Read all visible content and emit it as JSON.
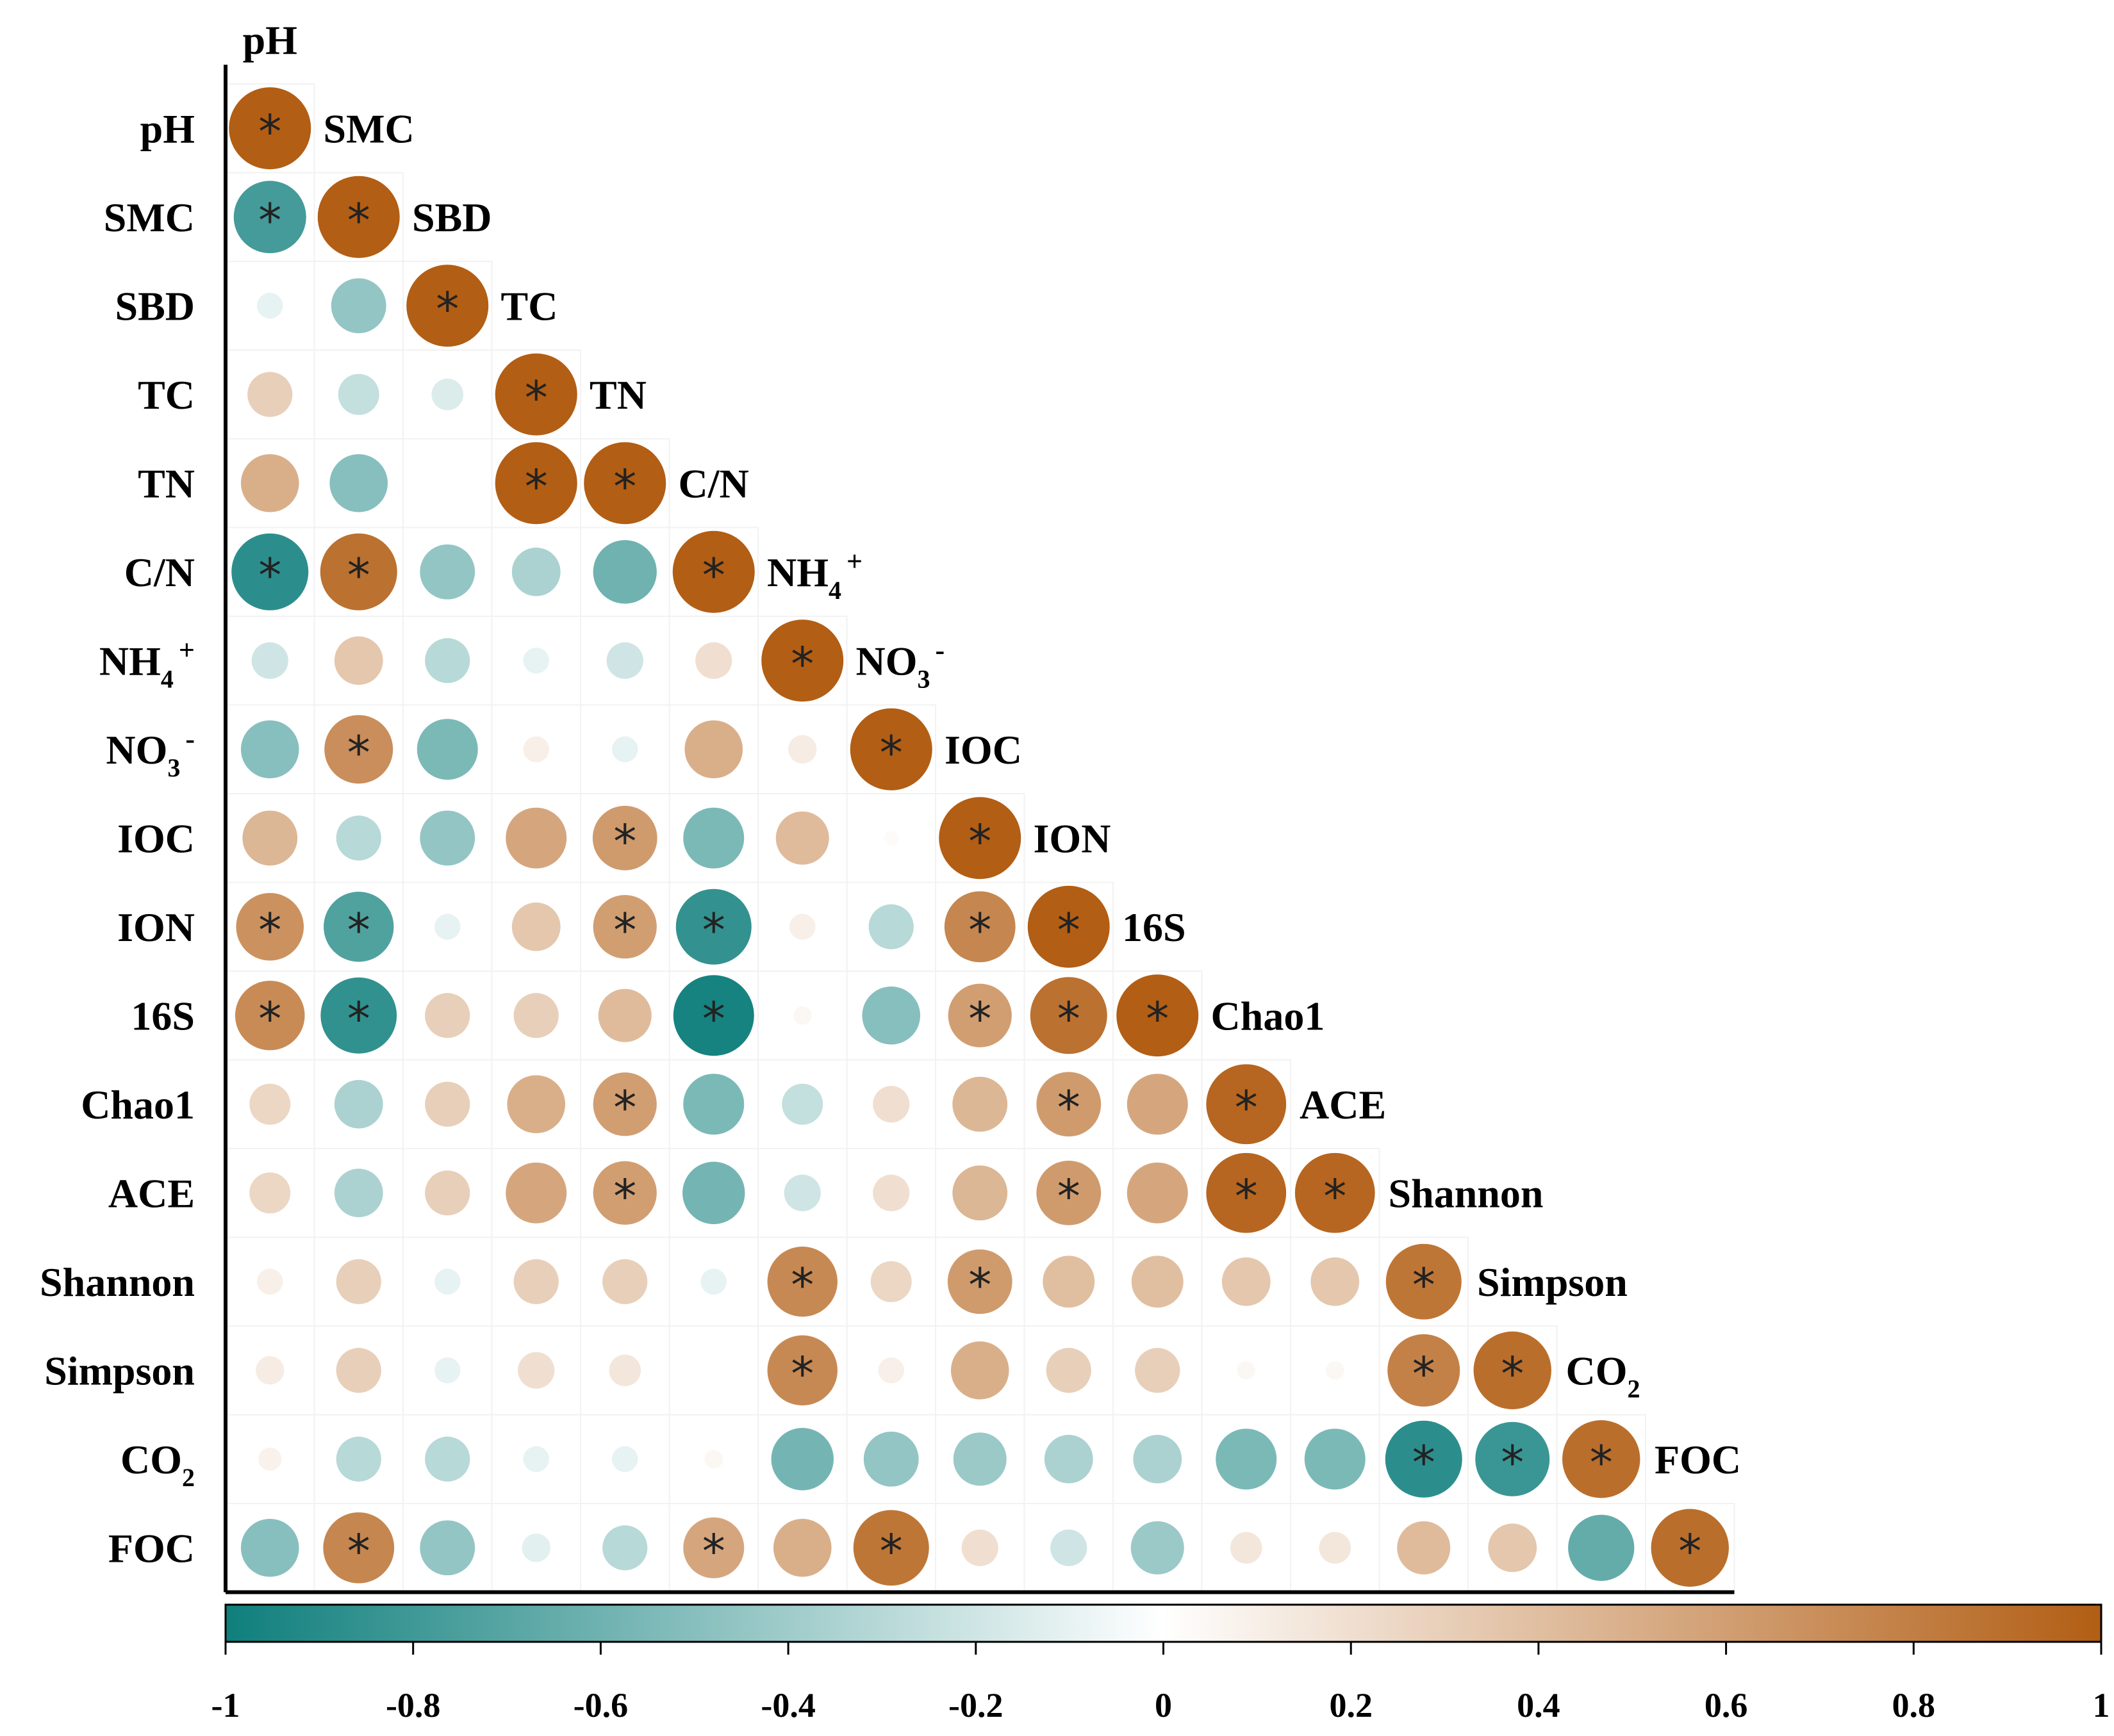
{
  "chart_data": {
    "type": "heatmap",
    "style": "lower-triangle correlation circles",
    "variables": [
      {
        "name": "pH",
        "sub": "",
        "sup": ""
      },
      {
        "name": "SMC",
        "sub": "",
        "sup": ""
      },
      {
        "name": "SBD",
        "sub": "",
        "sup": ""
      },
      {
        "name": "TC",
        "sub": "",
        "sup": ""
      },
      {
        "name": "TN",
        "sub": "",
        "sup": ""
      },
      {
        "name": "C/N",
        "sub": "",
        "sup": ""
      },
      {
        "name": "NH",
        "sub": "4",
        "sup": "+"
      },
      {
        "name": "NO",
        "sub": "3",
        "sup": "-"
      },
      {
        "name": "IOC",
        "sub": "",
        "sup": ""
      },
      {
        "name": "ION",
        "sub": "",
        "sup": ""
      },
      {
        "name": "16S",
        "sub": "",
        "sup": ""
      },
      {
        "name": "Chao1",
        "sub": "",
        "sup": ""
      },
      {
        "name": "ACE",
        "sub": "",
        "sup": ""
      },
      {
        "name": "Shannon",
        "sub": "",
        "sup": ""
      },
      {
        "name": "Simpson",
        "sub": "",
        "sup": ""
      },
      {
        "name": "CO",
        "sub": "2",
        "sup": ""
      },
      {
        "name": "FOC",
        "sub": "",
        "sup": ""
      }
    ],
    "correlations": [
      [
        1
      ],
      [
        -0.78,
        1
      ],
      [
        -0.1,
        -0.45,
        1
      ],
      [
        0.3,
        -0.25,
        -0.15,
        1
      ],
      [
        0.5,
        -0.5,
        0,
        1,
        1
      ],
      [
        -0.88,
        0.88,
        -0.45,
        -0.35,
        -0.6,
        1
      ],
      [
        -0.2,
        0.35,
        -0.3,
        -0.1,
        -0.2,
        0.2,
        1
      ],
      [
        -0.5,
        0.7,
        -0.55,
        0.1,
        -0.1,
        0.5,
        0.12,
        1
      ],
      [
        0.45,
        -0.3,
        -0.45,
        0.55,
        0.62,
        -0.55,
        0.42,
        0.03,
        1
      ],
      [
        0.68,
        -0.73,
        -0.1,
        0.35,
        0.6,
        -0.85,
        0.1,
        -0.3,
        0.75,
        1
      ],
      [
        0.72,
        -0.86,
        0.3,
        0.3,
        0.42,
        -0.97,
        0.05,
        -0.5,
        0.6,
        0.88,
        1
      ],
      [
        0.25,
        -0.35,
        0.3,
        0.5,
        0.6,
        -0.55,
        -0.25,
        0.2,
        0.45,
        0.62,
        0.55,
        0.95
      ],
      [
        0.25,
        -0.35,
        0.3,
        0.55,
        0.6,
        -0.58,
        -0.2,
        0.2,
        0.45,
        0.62,
        0.55,
        0.95,
        0.95
      ],
      [
        0.1,
        0.3,
        -0.1,
        0.3,
        0.3,
        -0.1,
        0.73,
        0.25,
        0.62,
        0.4,
        0.4,
        0.35,
        0.35,
        0.85
      ],
      [
        0.12,
        0.3,
        -0.1,
        0.2,
        0.15,
        0,
        0.73,
        0.1,
        0.5,
        0.3,
        0.3,
        0.05,
        0.05,
        0.78,
        0.9
      ],
      [
        0.08,
        -0.3,
        -0.3,
        -0.1,
        -0.1,
        0.05,
        -0.58,
        -0.45,
        -0.42,
        -0.35,
        -0.35,
        -0.55,
        -0.55,
        -0.88,
        -0.82,
        0.9
      ],
      [
        -0.5,
        0.75,
        -0.45,
        -0.12,
        -0.3,
        0.55,
        0.5,
        0.85,
        0.2,
        -0.2,
        -0.42,
        0.15,
        0.15,
        0.42,
        0.35,
        -0.65,
        0.9
      ]
    ],
    "significant": [
      [
        0,
        0
      ],
      [
        1,
        0
      ],
      [
        1,
        1
      ],
      [
        2,
        2
      ],
      [
        3,
        3
      ],
      [
        4,
        3
      ],
      [
        4,
        4
      ],
      [
        5,
        0
      ],
      [
        5,
        1
      ],
      [
        5,
        5
      ],
      [
        6,
        6
      ],
      [
        7,
        1
      ],
      [
        7,
        7
      ],
      [
        8,
        4
      ],
      [
        8,
        8
      ],
      [
        9,
        0
      ],
      [
        9,
        1
      ],
      [
        9,
        4
      ],
      [
        9,
        5
      ],
      [
        9,
        8
      ],
      [
        9,
        9
      ],
      [
        10,
        0
      ],
      [
        10,
        1
      ],
      [
        10,
        5
      ],
      [
        10,
        8
      ],
      [
        10,
        9
      ],
      [
        10,
        10
      ],
      [
        11,
        4
      ],
      [
        11,
        9
      ],
      [
        11,
        11
      ],
      [
        12,
        4
      ],
      [
        12,
        9
      ],
      [
        12,
        11
      ],
      [
        12,
        12
      ],
      [
        13,
        6
      ],
      [
        13,
        8
      ],
      [
        13,
        13
      ],
      [
        14,
        6
      ],
      [
        14,
        13
      ],
      [
        14,
        14
      ],
      [
        15,
        13
      ],
      [
        15,
        14
      ],
      [
        15,
        15
      ],
      [
        16,
        1
      ],
      [
        16,
        5
      ],
      [
        16,
        7
      ],
      [
        16,
        16
      ]
    ],
    "significance_marker": "*",
    "colorbar": {
      "range": [
        -1,
        1
      ],
      "ticks": [
        "-1",
        "-0.8",
        "-0.6",
        "-0.4",
        "-0.2",
        "0",
        "0.2",
        "0.4",
        "0.6",
        "0.8",
        "1"
      ],
      "low_color": "#0f7f7c",
      "mid_color": "#ffffff",
      "high_color": "#b25e14"
    }
  }
}
